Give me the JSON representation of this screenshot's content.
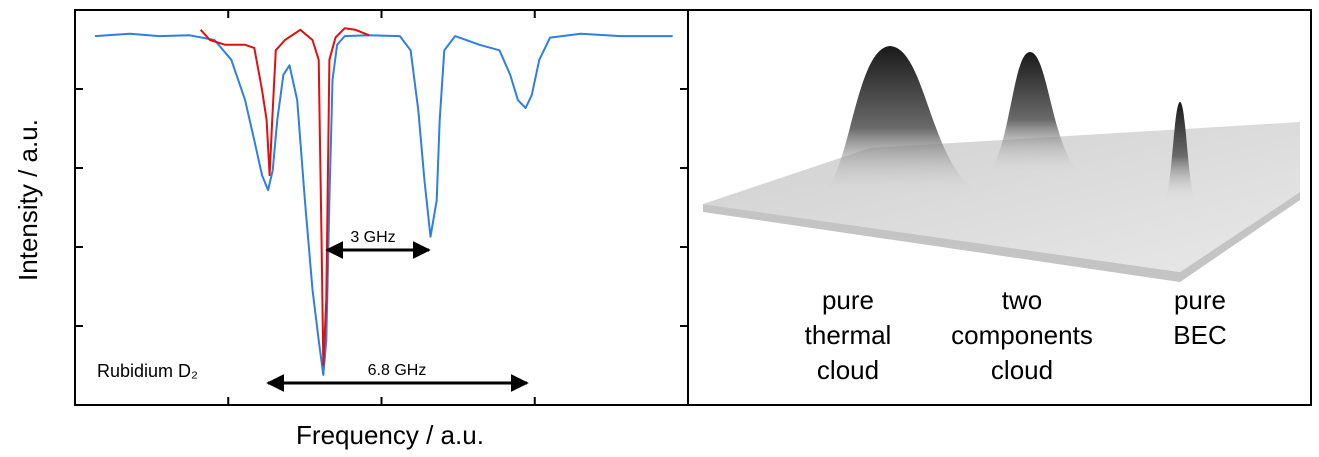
{
  "chart_data": {
    "type": "line",
    "x_label": "Frequency / a.u.",
    "y_label": "Intensity / a.u.",
    "xlim": [
      0,
      4
    ],
    "ylim": [
      0,
      5
    ],
    "xticks": [
      1,
      2,
      3
    ],
    "yticks": [
      1,
      2,
      3,
      4
    ],
    "grid": false,
    "series": [
      {
        "name": "Rubidium D₂",
        "color": "#2f7fe0",
        "x": [
          0.13,
          0.36,
          0.55,
          0.75,
          0.91,
          1.02,
          1.11,
          1.17,
          1.22,
          1.26,
          1.29,
          1.32,
          1.36,
          1.4,
          1.45,
          1.5,
          1.55,
          1.59,
          1.62,
          1.64,
          1.66,
          1.68,
          1.71,
          1.76,
          1.92,
          2.12,
          2.19,
          2.24,
          2.28,
          2.32,
          2.36,
          2.38,
          2.41,
          2.48,
          2.64,
          2.77,
          2.84,
          2.89,
          2.94,
          2.98,
          3.03,
          3.1,
          3.3,
          3.56,
          3.75,
          3.9
        ],
        "values": [
          4.67,
          4.7,
          4.67,
          4.68,
          4.62,
          4.37,
          3.86,
          3.35,
          2.91,
          2.72,
          2.97,
          3.61,
          4.18,
          4.3,
          3.86,
          2.59,
          1.46,
          0.82,
          0.38,
          0.82,
          2.59,
          4.11,
          4.56,
          4.67,
          4.68,
          4.67,
          4.49,
          3.73,
          2.85,
          2.13,
          2.59,
          3.61,
          4.49,
          4.67,
          4.56,
          4.49,
          4.18,
          3.86,
          3.76,
          3.92,
          4.37,
          4.65,
          4.7,
          4.67,
          4.67,
          4.67
        ]
      },
      {
        "color": "#e01010",
        "x": [
          0.82,
          0.88,
          0.98,
          1.11,
          1.17,
          1.22,
          1.25,
          1.27,
          1.29,
          1.31,
          1.37,
          1.47,
          1.55,
          1.59,
          1.61,
          1.62,
          1.64,
          1.66,
          1.7,
          1.76,
          1.83,
          1.92
        ],
        "values": [
          4.75,
          4.62,
          4.56,
          4.56,
          4.52,
          3.99,
          3.61,
          2.91,
          3.73,
          4.49,
          4.62,
          4.75,
          4.62,
          4.37,
          1.96,
          0.51,
          1.33,
          4.37,
          4.65,
          4.77,
          4.75,
          4.68
        ]
      }
    ],
    "annotations": [
      "3 GHz",
      "6.8 GHz"
    ]
  },
  "image_panel": {
    "labels": [
      [
        "pure",
        "thermal",
        "cloud"
      ],
      [
        "two",
        "components",
        "cloud"
      ],
      [
        "pure",
        "BEC"
      ]
    ]
  }
}
